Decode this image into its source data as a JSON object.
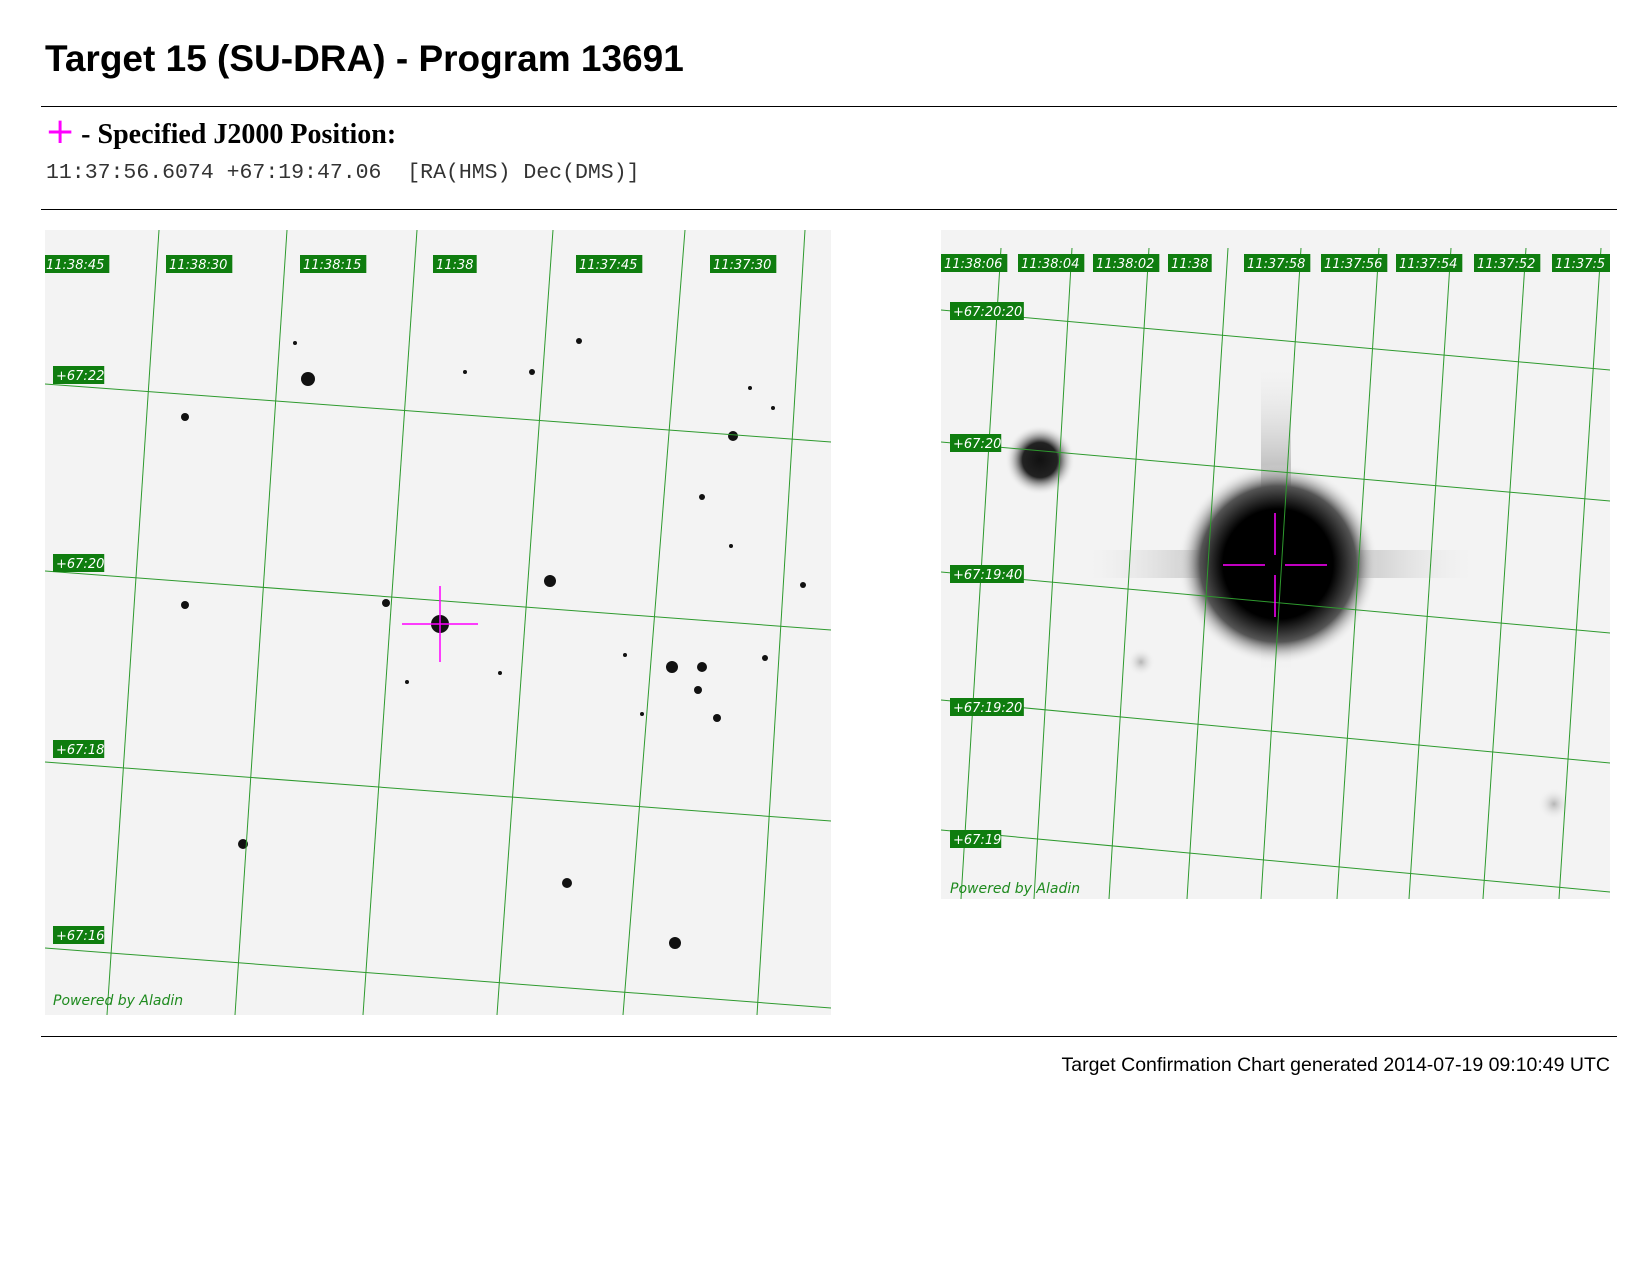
{
  "header": {
    "title": "Target 15 (SU-DRA) - Program 13691"
  },
  "position": {
    "marker_icon": "magenta-crosshair-icon",
    "marker_color": "#ff00ff",
    "heading": "- Specified J2000 Position:",
    "coordinates": "11:37:56.6074 +67:19:47.06  [RA(HMS) Dec(DMS)]"
  },
  "charts": {
    "grid_color": "#2e9a2e",
    "label_bg": "#0f7d0f",
    "label_fg": "#ffffff",
    "crosshair_color": "#ff00ff",
    "wide": {
      "ra_labels": [
        "11:38:45",
        "11:38:30",
        "11:38:15",
        "11:38",
        "11:37:45",
        "11:37:30"
      ],
      "dec_labels": [
        "+67:22",
        "+67:20",
        "+67:18",
        "+67:16"
      ],
      "credit": "Powered by Aladin"
    },
    "zoom": {
      "ra_labels": [
        "11:38:06",
        "11:38:04",
        "11:38:02",
        "11:38",
        "11:37:58",
        "11:37:56",
        "11:37:54",
        "11:37:52",
        "11:37:5"
      ],
      "dec_labels": [
        "+67:20:20",
        "+67:20",
        "+67:19:40",
        "+67:19:20",
        "+67:19"
      ],
      "credit": "Powered by Aladin"
    }
  },
  "footer": {
    "generated": "Target Confirmation Chart generated 2014-07-19 09:10:49 UTC"
  }
}
